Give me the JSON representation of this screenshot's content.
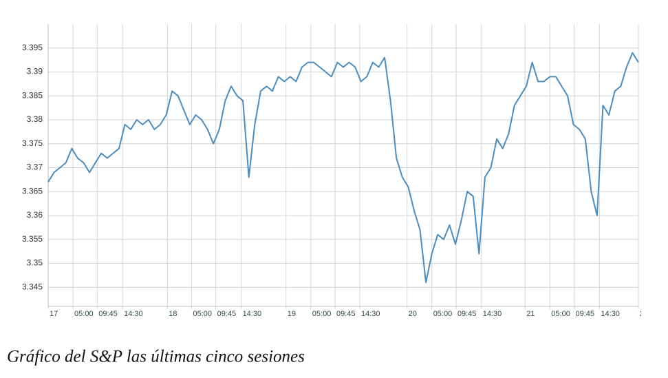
{
  "chart_data": {
    "type": "line",
    "title": "Gráfico del S&P las últimas cinco sesiones",
    "x": [
      0,
      1,
      2,
      3,
      4,
      5,
      6,
      7,
      8,
      9,
      10,
      11,
      12,
      13,
      14,
      15,
      16,
      17,
      18,
      19,
      20,
      21,
      22,
      23,
      24,
      25,
      26,
      27,
      28,
      29,
      30,
      31,
      32,
      33,
      34,
      35,
      36,
      37,
      38,
      39,
      40,
      41,
      42,
      43,
      44,
      45,
      46,
      47,
      48,
      49,
      50,
      51,
      52,
      53,
      54,
      55,
      56,
      57,
      58,
      59,
      60,
      61,
      62,
      63,
      64,
      65,
      66,
      67,
      68,
      69,
      70,
      71,
      72,
      73,
      74,
      75,
      76,
      77,
      78,
      79,
      80,
      81,
      82,
      83,
      84,
      85,
      86,
      87,
      88,
      89,
      90,
      91,
      92,
      93,
      94,
      95,
      96,
      97,
      98,
      99,
      100
    ],
    "series": [
      {
        "color": "#4a8cc0",
        "values": [
          3.367,
          3.369,
          3.37,
          3.371,
          3.374,
          3.372,
          3.371,
          3.369,
          3.371,
          3.373,
          3.372,
          3.373,
          3.374,
          3.379,
          3.378,
          3.38,
          3.379,
          3.38,
          3.378,
          3.379,
          3.381,
          3.386,
          3.385,
          3.382,
          3.379,
          3.381,
          3.38,
          3.378,
          3.375,
          3.378,
          3.384,
          3.387,
          3.385,
          3.384,
          3.368,
          3.379,
          3.386,
          3.387,
          3.386,
          3.389,
          3.388,
          3.389,
          3.388,
          3.391,
          3.392,
          3.392,
          3.391,
          3.39,
          3.389,
          3.392,
          3.391,
          3.392,
          3.391,
          3.388,
          3.389,
          3.392,
          3.391,
          3.393,
          3.384,
          3.372,
          3.368,
          3.366,
          3.361,
          3.357,
          3.346,
          3.352,
          3.356,
          3.355,
          3.358,
          3.354,
          3.359,
          3.365,
          3.364,
          3.352,
          3.368,
          3.37,
          3.376,
          3.374,
          3.377,
          3.383,
          3.385,
          3.387,
          3.392,
          3.388,
          3.388,
          3.389,
          3.389,
          3.387,
          3.385,
          3.379,
          3.378,
          3.376,
          3.365,
          3.36,
          3.383,
          3.381,
          3.386,
          3.387,
          3.391,
          3.394,
          3.392
        ]
      }
    ],
    "xlim": [
      0,
      100
    ],
    "xticks": [
      {
        "value": 0,
        "label": "17"
      },
      {
        "value": 4.2,
        "label": "05:00"
      },
      {
        "value": 8.3,
        "label": "09:45"
      },
      {
        "value": 12.6,
        "label": "14:30"
      },
      {
        "value": 20.2,
        "label": "18"
      },
      {
        "value": 24.3,
        "label": "05:00"
      },
      {
        "value": 28.4,
        "label": "09:45"
      },
      {
        "value": 32.7,
        "label": "14:30"
      },
      {
        "value": 40.3,
        "label": "19"
      },
      {
        "value": 44.5,
        "label": "05:00"
      },
      {
        "value": 48.6,
        "label": "09:45"
      },
      {
        "value": 52.8,
        "label": "14:30"
      },
      {
        "value": 60.8,
        "label": "20"
      },
      {
        "value": 65.0,
        "label": "05:00"
      },
      {
        "value": 69.1,
        "label": "09:45"
      },
      {
        "value": 73.4,
        "label": "14:30"
      },
      {
        "value": 80.8,
        "label": "21"
      },
      {
        "value": 85.0,
        "label": "05:00"
      },
      {
        "value": 89.1,
        "label": "09:45"
      },
      {
        "value": 93.4,
        "label": "14:30"
      },
      {
        "value": 100,
        "label": "2"
      }
    ],
    "ylim": [
      3.341,
      3.4
    ],
    "yticks": [
      3.345,
      3.35,
      3.355,
      3.36,
      3.365,
      3.37,
      3.375,
      3.38,
      3.385,
      3.39,
      3.395
    ],
    "grid": true
  }
}
